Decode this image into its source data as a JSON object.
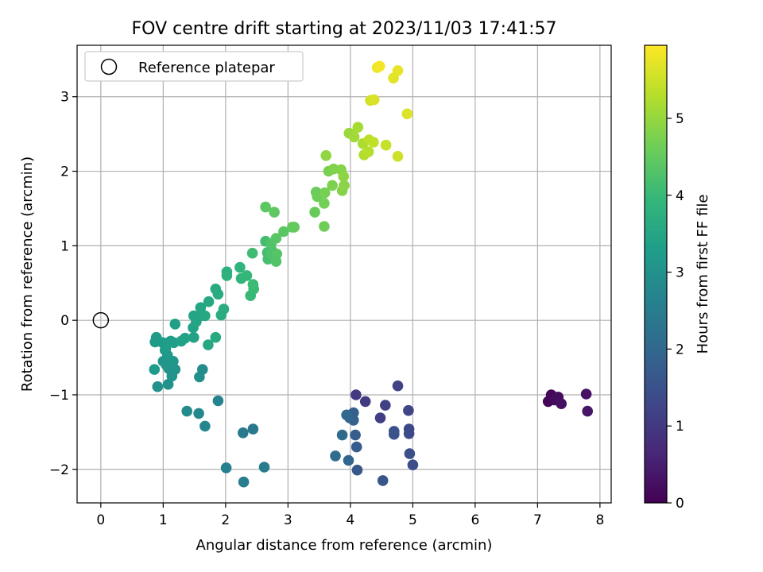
{
  "chart_data": {
    "type": "scatter",
    "title": "FOV centre drift starting at 2023/11/03 17:41:57",
    "xlabel": "Angular distance from reference (arcmin)",
    "ylabel": "Rotation from reference (arcmin)",
    "xlim": [
      -0.38,
      8.18
    ],
    "ylim": [
      -2.45,
      3.69
    ],
    "xticks": [
      0,
      1,
      2,
      3,
      4,
      5,
      6,
      7,
      8
    ],
    "yticks": [
      -2,
      -1,
      0,
      1,
      2,
      3
    ],
    "grid": true,
    "legend": {
      "placement": "top-left",
      "entries": [
        "Reference platepar"
      ]
    },
    "reference": {
      "x": 0,
      "y": 0
    },
    "colorbar": {
      "label": "Hours from first FF file",
      "colormap": "viridis",
      "range": [
        0,
        5.95
      ],
      "ticks": [
        0,
        1,
        2,
        3,
        4,
        5
      ]
    },
    "colormap_stops": [
      "#440154",
      "#482878",
      "#3e4989",
      "#31688e",
      "#26828e",
      "#1f9e89",
      "#35b779",
      "#6ece58",
      "#b5de2b",
      "#fde725"
    ],
    "points": [
      [
        7.17,
        -1.09,
        0.05
      ],
      [
        7.22,
        -1.0,
        0.1
      ],
      [
        7.27,
        -1.07,
        0.15
      ],
      [
        7.33,
        -1.03,
        0.2
      ],
      [
        7.38,
        -1.12,
        0.25
      ],
      [
        7.78,
        -0.99,
        0.3
      ],
      [
        7.8,
        -1.22,
        0.35
      ],
      [
        4.09,
        -1.0,
        1.0
      ],
      [
        4.24,
        -1.09,
        1.05
      ],
      [
        4.48,
        -1.31,
        1.1
      ],
      [
        4.56,
        -1.14,
        1.15
      ],
      [
        4.76,
        -0.88,
        1.2
      ],
      [
        4.93,
        -1.21,
        1.25
      ],
      [
        4.94,
        -1.46,
        1.3
      ],
      [
        4.94,
        -1.52,
        1.35
      ],
      [
        5.0,
        -1.94,
        1.4
      ],
      [
        4.95,
        -1.79,
        1.45
      ],
      [
        4.7,
        -1.49,
        1.5
      ],
      [
        4.7,
        -1.53,
        1.55
      ],
      [
        4.52,
        -2.15,
        1.6
      ],
      [
        4.11,
        -2.01,
        1.65
      ],
      [
        4.1,
        -1.7,
        1.7
      ],
      [
        4.08,
        -1.54,
        1.75
      ],
      [
        4.05,
        -1.24,
        1.8
      ],
      [
        4.05,
        -1.34,
        1.85
      ],
      [
        3.99,
        -1.31,
        1.9
      ],
      [
        3.97,
        -1.88,
        1.95
      ],
      [
        3.94,
        -1.27,
        2.0
      ],
      [
        3.87,
        -1.54,
        2.05
      ],
      [
        3.76,
        -1.82,
        2.1
      ],
      [
        2.44,
        -1.46,
        2.4
      ],
      [
        2.28,
        -1.51,
        2.45
      ],
      [
        2.62,
        -1.97,
        2.5
      ],
      [
        2.29,
        -2.17,
        2.55
      ],
      [
        2.01,
        -1.98,
        2.6
      ],
      [
        1.88,
        -1.08,
        2.7
      ],
      [
        1.67,
        -1.42,
        2.75
      ],
      [
        1.57,
        -1.25,
        2.8
      ],
      [
        1.38,
        -1.22,
        2.85
      ],
      [
        1.63,
        -0.66,
        2.9
      ],
      [
        1.58,
        -0.76,
        2.95
      ],
      [
        0.91,
        -0.89,
        3.0
      ],
      [
        1.08,
        -0.86,
        3.02
      ],
      [
        1.09,
        -0.65,
        3.04
      ],
      [
        1.19,
        -0.66,
        3.06
      ],
      [
        1.14,
        -0.75,
        3.08
      ],
      [
        1.0,
        -0.55,
        3.1
      ],
      [
        1.05,
        -0.6,
        3.12
      ],
      [
        1.16,
        -0.55,
        3.14
      ],
      [
        1.07,
        -0.47,
        3.16
      ],
      [
        1.03,
        -0.4,
        3.18
      ],
      [
        0.86,
        -0.66,
        3.2
      ],
      [
        0.87,
        -0.29,
        3.22
      ],
      [
        0.89,
        -0.23,
        3.24
      ],
      [
        0.99,
        -0.3,
        3.26
      ],
      [
        1.04,
        -0.38,
        3.28
      ],
      [
        1.08,
        -0.3,
        3.3
      ],
      [
        1.12,
        -0.28,
        3.32
      ],
      [
        1.17,
        -0.3,
        3.34
      ],
      [
        1.19,
        -0.05,
        3.36
      ],
      [
        1.29,
        -0.28,
        3.38
      ],
      [
        1.35,
        -0.24,
        3.4
      ],
      [
        1.49,
        -0.23,
        3.42
      ],
      [
        1.48,
        -0.1,
        3.44
      ],
      [
        1.53,
        -0.02,
        3.46
      ],
      [
        1.49,
        0.06,
        3.48
      ],
      [
        1.6,
        0.06,
        3.5
      ],
      [
        1.6,
        0.17,
        3.52
      ],
      [
        1.67,
        0.06,
        3.54
      ],
      [
        1.73,
        0.25,
        3.56
      ],
      [
        1.72,
        -0.33,
        3.58
      ],
      [
        1.84,
        -0.23,
        3.6
      ],
      [
        1.84,
        0.42,
        3.62
      ],
      [
        1.88,
        0.35,
        3.64
      ],
      [
        1.93,
        0.07,
        3.66
      ],
      [
        1.97,
        0.15,
        3.68
      ],
      [
        2.02,
        0.65,
        3.75
      ],
      [
        2.02,
        0.6,
        3.8
      ],
      [
        2.23,
        0.71,
        3.85
      ],
      [
        2.25,
        0.56,
        3.9
      ],
      [
        2.34,
        0.6,
        3.95
      ],
      [
        2.4,
        0.33,
        4.0
      ],
      [
        2.45,
        0.42,
        4.03
      ],
      [
        2.44,
        0.48,
        4.06
      ],
      [
        2.43,
        0.9,
        4.09
      ],
      [
        2.64,
        1.06,
        4.12
      ],
      [
        2.67,
        0.91,
        4.15
      ],
      [
        2.68,
        0.82,
        4.18
      ],
      [
        2.74,
        0.94,
        4.21
      ],
      [
        2.73,
        0.89,
        4.24
      ],
      [
        2.73,
        1.03,
        4.27
      ],
      [
        2.81,
        0.79,
        4.3
      ],
      [
        2.82,
        0.89,
        4.33
      ],
      [
        2.81,
        1.1,
        4.36
      ],
      [
        2.93,
        1.19,
        4.39
      ],
      [
        2.64,
        1.52,
        4.42
      ],
      [
        2.78,
        1.45,
        4.45
      ],
      [
        3.07,
        1.25,
        4.48
      ],
      [
        3.1,
        1.25,
        4.51
      ],
      [
        3.43,
        1.45,
        4.55
      ],
      [
        3.45,
        1.72,
        4.58
      ],
      [
        3.47,
        1.66,
        4.61
      ],
      [
        3.58,
        1.26,
        4.64
      ],
      [
        3.58,
        1.57,
        4.67
      ],
      [
        3.59,
        1.71,
        4.7
      ],
      [
        3.65,
        2.0,
        4.73
      ],
      [
        3.71,
        1.81,
        4.76
      ],
      [
        3.73,
        2.03,
        4.79
      ],
      [
        3.85,
        2.02,
        4.82
      ],
      [
        3.87,
        1.74,
        4.85
      ],
      [
        3.9,
        1.81,
        4.88
      ],
      [
        3.89,
        1.93,
        4.91
      ],
      [
        3.61,
        2.21,
        4.94
      ],
      [
        3.98,
        2.51,
        5.05
      ],
      [
        4.06,
        2.46,
        5.1
      ],
      [
        4.12,
        2.59,
        5.15
      ],
      [
        4.2,
        2.37,
        5.2
      ],
      [
        4.22,
        2.22,
        5.25
      ],
      [
        4.29,
        2.26,
        5.3
      ],
      [
        4.3,
        2.42,
        5.35
      ],
      [
        4.37,
        2.39,
        5.4
      ],
      [
        4.57,
        2.35,
        5.45
      ],
      [
        4.76,
        2.2,
        5.5
      ],
      [
        4.32,
        2.95,
        5.55
      ],
      [
        4.38,
        2.96,
        5.6
      ],
      [
        4.91,
        2.77,
        5.65
      ],
      [
        4.69,
        3.25,
        5.7
      ],
      [
        4.76,
        3.35,
        5.75
      ],
      [
        4.43,
        3.39,
        5.8
      ],
      [
        4.47,
        3.41,
        5.85
      ]
    ]
  }
}
